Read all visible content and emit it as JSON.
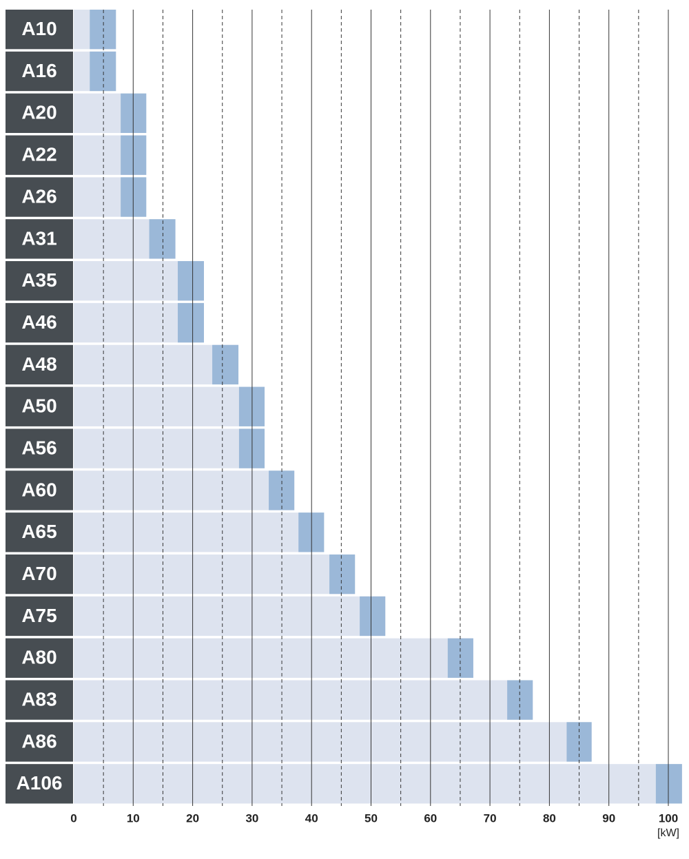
{
  "chart_data": {
    "type": "range-bar",
    "categories": [
      "A10",
      "A16",
      "A20",
      "A22",
      "A26",
      "A31",
      "A35",
      "A46",
      "A48",
      "A50",
      "A56",
      "A60",
      "A65",
      "A70",
      "A75",
      "A80",
      "A83",
      "A86",
      "A106"
    ],
    "values": [
      [
        2.7,
        7.1
      ],
      [
        2.7,
        7.1
      ],
      [
        7.9,
        12.2
      ],
      [
        7.9,
        12.2
      ],
      [
        7.9,
        12.2
      ],
      [
        12.7,
        17.1
      ],
      [
        17.5,
        21.9
      ],
      [
        17.5,
        21.9
      ],
      [
        23.3,
        27.7
      ],
      [
        27.8,
        32.1
      ],
      [
        27.8,
        32.1
      ],
      [
        32.8,
        37.1
      ],
      [
        37.8,
        42.1
      ],
      [
        43.0,
        47.3
      ],
      [
        48.1,
        52.4
      ],
      [
        62.9,
        67.2
      ],
      [
        72.9,
        77.2
      ],
      [
        82.9,
        87.1
      ],
      [
        97.9,
        102.3
      ]
    ],
    "base_color": "#dde3ef",
    "color": "#9bb8d8",
    "label_background": "#474d52",
    "xlim": [
      0,
      102.3
    ],
    "xticks": [
      0,
      10,
      20,
      30,
      40,
      50,
      60,
      70,
      80,
      90,
      100
    ],
    "minor_xticks": [
      5,
      15,
      25,
      35,
      45,
      55,
      65,
      75,
      85,
      95
    ],
    "x_unit": "[kW]",
    "grid": true
  }
}
